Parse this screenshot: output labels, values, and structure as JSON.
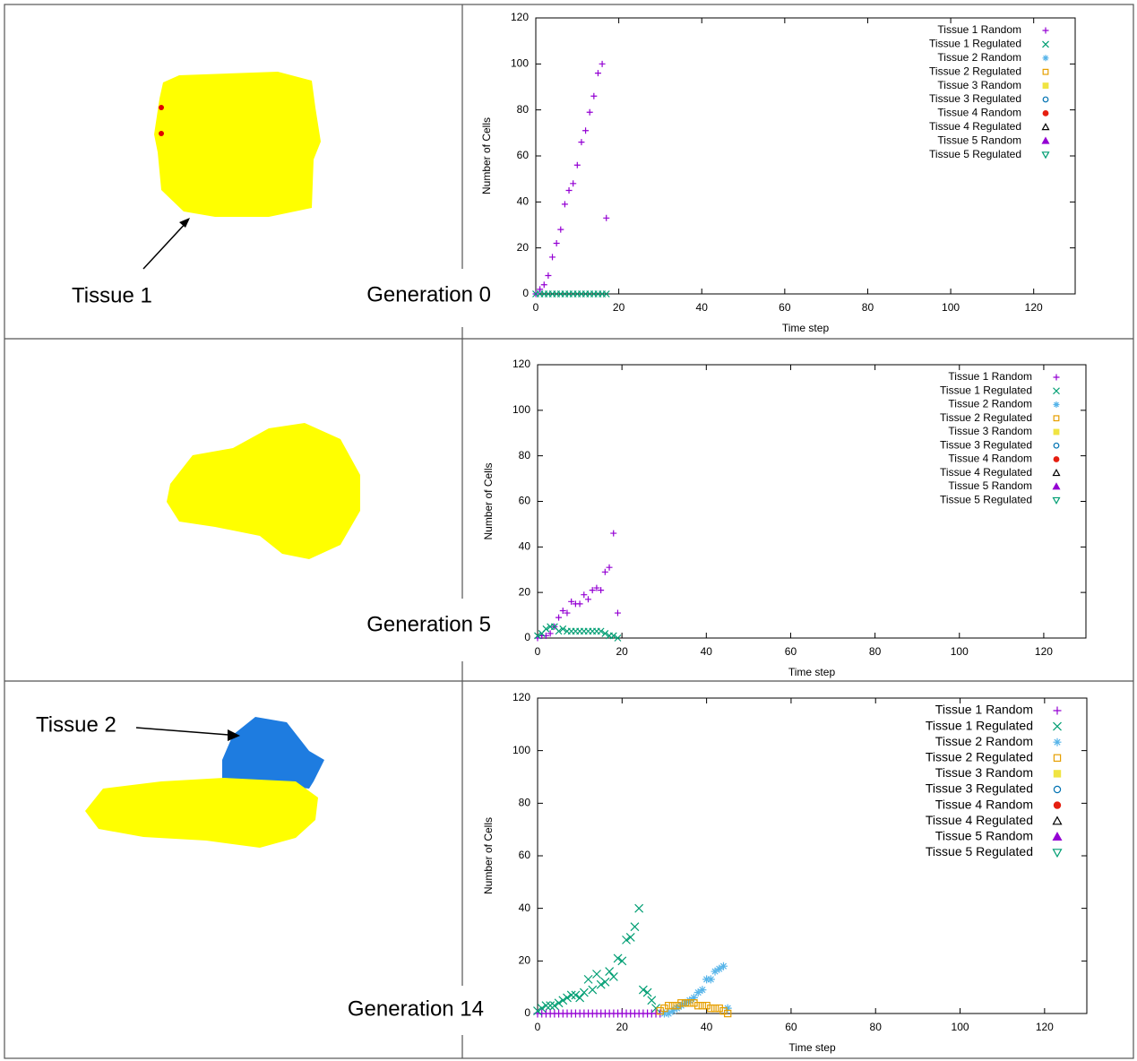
{
  "chart_data": [
    {
      "type": "scatter",
      "xlabel": "Time step",
      "ylabel": "Number of Cells",
      "annotations": [
        "Generation 0",
        "Tissue 1"
      ],
      "xlim": [
        0,
        130
      ],
      "ylim": [
        0,
        120
      ],
      "xticks": [
        0,
        20,
        40,
        60,
        80,
        100,
        120
      ],
      "yticks": [
        0,
        20,
        40,
        60,
        80,
        100,
        120
      ],
      "legend": "upper right",
      "series": [
        {
          "name": "Tissue 1 Random",
          "color": "#9400d3",
          "marker": "plus",
          "x": [
            0,
            1,
            2,
            3,
            4,
            5,
            6,
            7,
            8,
            9,
            10,
            11,
            12,
            13,
            14,
            15,
            16,
            17
          ],
          "values": [
            0,
            2,
            4,
            8,
            16,
            22,
            28,
            39,
            45,
            48,
            56,
            66,
            71,
            79,
            86,
            96,
            100,
            33
          ]
        },
        {
          "name": "Tissue 1 Regulated",
          "color": "#009e73",
          "marker": "cross",
          "x": [
            0,
            1,
            2,
            3,
            4,
            5,
            6,
            7,
            8,
            9,
            10,
            11,
            12,
            13,
            14,
            15,
            16,
            17
          ],
          "values": [
            0,
            0,
            0,
            0,
            0,
            0,
            0,
            0,
            0,
            0,
            0,
            0,
            0,
            0,
            0,
            0,
            0,
            0
          ]
        },
        {
          "name": "Tissue 2 Random",
          "color": "#56b4e9",
          "marker": "asterisk",
          "x": [],
          "values": []
        },
        {
          "name": "Tissue 2 Regulated",
          "color": "#e69f00",
          "marker": "square",
          "x": [],
          "values": []
        },
        {
          "name": "Tissue 3 Random",
          "color": "#f0e442",
          "marker": "filled-square",
          "x": [],
          "values": []
        },
        {
          "name": "Tissue 3 Regulated",
          "color": "#0072b2",
          "marker": "circle",
          "x": [],
          "values": []
        },
        {
          "name": "Tissue 4 Random",
          "color": "#e51e10",
          "marker": "filled-circle",
          "x": [],
          "values": []
        },
        {
          "name": "Tissue 4 Regulated",
          "color": "#000000",
          "marker": "triangle",
          "x": [],
          "values": []
        },
        {
          "name": "Tissue 5 Random",
          "color": "#9400d3",
          "marker": "filled-triangle",
          "x": [],
          "values": []
        },
        {
          "name": "Tissue 5 Regulated",
          "color": "#009e73",
          "marker": "inverted-triangle",
          "x": [],
          "values": []
        }
      ]
    },
    {
      "type": "scatter",
      "xlabel": "Time step",
      "ylabel": "Number of Cells",
      "annotations": [
        "Generation 5"
      ],
      "xlim": [
        0,
        130
      ],
      "ylim": [
        0,
        120
      ],
      "xticks": [
        0,
        20,
        40,
        60,
        80,
        100,
        120
      ],
      "yticks": [
        0,
        20,
        40,
        60,
        80,
        100,
        120
      ],
      "legend": "upper right",
      "series": [
        {
          "name": "Tissue 1 Random",
          "color": "#9400d3",
          "marker": "plus",
          "x": [
            0,
            1,
            2,
            3,
            4,
            5,
            6,
            7,
            8,
            9,
            10,
            11,
            12,
            13,
            14,
            15,
            16,
            17,
            18,
            19
          ],
          "values": [
            0,
            1,
            1,
            2,
            5,
            9,
            12,
            11,
            16,
            15,
            15,
            19,
            17,
            21,
            22,
            21,
            29,
            31,
            46,
            11
          ]
        },
        {
          "name": "Tissue 1 Regulated",
          "color": "#009e73",
          "marker": "cross",
          "x": [
            0,
            1,
            2,
            3,
            4,
            5,
            6,
            7,
            8,
            9,
            10,
            11,
            12,
            13,
            14,
            15,
            16,
            17,
            18,
            19
          ],
          "values": [
            1,
            2,
            4,
            5,
            5,
            3,
            4,
            3,
            3,
            3,
            3,
            3,
            3,
            3,
            3,
            3,
            2,
            1,
            1,
            0
          ]
        },
        {
          "name": "Tissue 2 Random",
          "color": "#56b4e9",
          "marker": "asterisk",
          "x": [],
          "values": []
        },
        {
          "name": "Tissue 2 Regulated",
          "color": "#e69f00",
          "marker": "square",
          "x": [],
          "values": []
        },
        {
          "name": "Tissue 3 Random",
          "color": "#f0e442",
          "marker": "filled-square",
          "x": [],
          "values": []
        },
        {
          "name": "Tissue 3 Regulated",
          "color": "#0072b2",
          "marker": "circle",
          "x": [],
          "values": []
        },
        {
          "name": "Tissue 4 Random",
          "color": "#e51e10",
          "marker": "filled-circle",
          "x": [],
          "values": []
        },
        {
          "name": "Tissue 4 Regulated",
          "color": "#000000",
          "marker": "triangle",
          "x": [],
          "values": []
        },
        {
          "name": "Tissue 5 Random",
          "color": "#9400d3",
          "marker": "filled-triangle",
          "x": [],
          "values": []
        },
        {
          "name": "Tissue 5 Regulated",
          "color": "#009e73",
          "marker": "inverted-triangle",
          "x": [],
          "values": []
        }
      ]
    },
    {
      "type": "scatter",
      "xlabel": "Time step",
      "ylabel": "Number of Cells",
      "annotations": [
        "Generation 14",
        "Tissue 2"
      ],
      "xlim": [
        0,
        130
      ],
      "ylim": [
        0,
        120
      ],
      "xticks": [
        0,
        20,
        40,
        60,
        80,
        100,
        120
      ],
      "yticks": [
        0,
        20,
        40,
        60,
        80,
        100,
        120
      ],
      "legend": "upper right",
      "series": [
        {
          "name": "Tissue 1 Random",
          "color": "#9400d3",
          "marker": "plus",
          "x": [
            0,
            1,
            2,
            3,
            4,
            5,
            6,
            7,
            8,
            9,
            10,
            11,
            12,
            13,
            14,
            15,
            16,
            17,
            18,
            19,
            20,
            21,
            22,
            23,
            24,
            25,
            26,
            27,
            28,
            29
          ],
          "values": [
            0,
            0,
            0,
            0,
            0,
            0,
            0,
            0,
            0,
            0,
            0,
            0,
            0,
            0,
            0,
            0,
            0,
            0,
            0,
            0,
            0,
            0,
            0,
            0,
            0,
            0,
            0,
            0,
            0,
            0
          ]
        },
        {
          "name": "Tissue 1 Regulated",
          "color": "#009e73",
          "marker": "cross",
          "x": [
            0,
            1,
            2,
            3,
            4,
            5,
            6,
            7,
            8,
            9,
            10,
            11,
            12,
            13,
            14,
            15,
            16,
            17,
            18,
            19,
            20,
            21,
            22,
            23,
            24,
            25,
            26,
            27,
            28
          ],
          "values": [
            1,
            2,
            3,
            3,
            3,
            4,
            5,
            6,
            7,
            7,
            6,
            8,
            13,
            9,
            15,
            11,
            12,
            16,
            14,
            21,
            20,
            28,
            29,
            33,
            40,
            9,
            8,
            5,
            2
          ]
        },
        {
          "name": "Tissue 2 Random",
          "color": "#56b4e9",
          "marker": "asterisk",
          "x": [
            30,
            31,
            32,
            33,
            34,
            35,
            36,
            37,
            38,
            39,
            40,
            41,
            42,
            43,
            44,
            45
          ],
          "values": [
            0,
            0,
            1,
            2,
            3,
            4,
            5,
            6,
            8,
            9,
            13,
            13,
            16,
            17,
            18,
            2
          ]
        },
        {
          "name": "Tissue 2 Regulated",
          "color": "#e69f00",
          "marker": "square",
          "x": [
            29,
            30,
            31,
            32,
            33,
            34,
            35,
            36,
            37,
            38,
            39,
            40,
            41,
            42,
            43,
            44,
            45
          ],
          "values": [
            1,
            2,
            3,
            3,
            3,
            4,
            4,
            4,
            4,
            3,
            3,
            3,
            2,
            2,
            2,
            1,
            0
          ]
        },
        {
          "name": "Tissue 3 Random",
          "color": "#f0e442",
          "marker": "filled-square",
          "x": [],
          "values": []
        },
        {
          "name": "Tissue 3 Regulated",
          "color": "#0072b2",
          "marker": "circle",
          "x": [],
          "values": []
        },
        {
          "name": "Tissue 4 Random",
          "color": "#e51e10",
          "marker": "filled-circle",
          "x": [],
          "values": []
        },
        {
          "name": "Tissue 4 Regulated",
          "color": "#000000",
          "marker": "triangle",
          "x": [],
          "values": []
        },
        {
          "name": "Tissue 5 Random",
          "color": "#9400d3",
          "marker": "filled-triangle",
          "x": [],
          "values": []
        },
        {
          "name": "Tissue 5 Regulated",
          "color": "#009e73",
          "marker": "inverted-triangle",
          "x": [],
          "values": []
        }
      ]
    }
  ]
}
